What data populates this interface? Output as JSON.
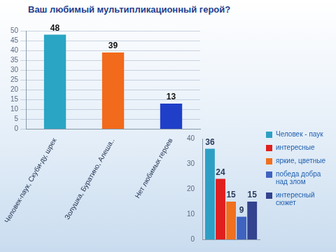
{
  "chart_data": [
    {
      "type": "bar",
      "title": "Ваш любимый мультипликационный герой?",
      "categories": [
        "Человек-паук, Скуби-ду, шрек",
        "Золушка, Буратино, Алеша..",
        "Нет любимых героев"
      ],
      "values": [
        48,
        39,
        13
      ],
      "colors": [
        "#2aa5c4",
        "#f26a1b",
        "#1f3fc8"
      ],
      "ylim": [
        0,
        50
      ],
      "yticks": [
        0,
        5,
        10,
        15,
        20,
        25,
        30,
        35,
        40,
        45,
        50
      ],
      "grid": true,
      "data_labels": true
    },
    {
      "type": "bar",
      "categories": [
        null
      ],
      "series": [
        {
          "name": "Человек - паук",
          "color": "#2e9fc4",
          "values": [
            36
          ]
        },
        {
          "name": "интересные",
          "color": "#e01f1f",
          "values": [
            24
          ]
        },
        {
          "name": "яркие, цветные",
          "color": "#f0701e",
          "values": [
            15
          ]
        },
        {
          "name": "победа добра над злом",
          "color": "#3f63c0",
          "values": [
            9
          ]
        },
        {
          "name": "интересный сюжет",
          "color": "#33438f",
          "values": [
            15
          ]
        }
      ],
      "ylim": [
        0,
        40
      ],
      "yticks": [
        0,
        10,
        20,
        30,
        40
      ],
      "grid": false,
      "data_labels": true,
      "legend": "right",
      "tick_labels": "y"
    }
  ]
}
